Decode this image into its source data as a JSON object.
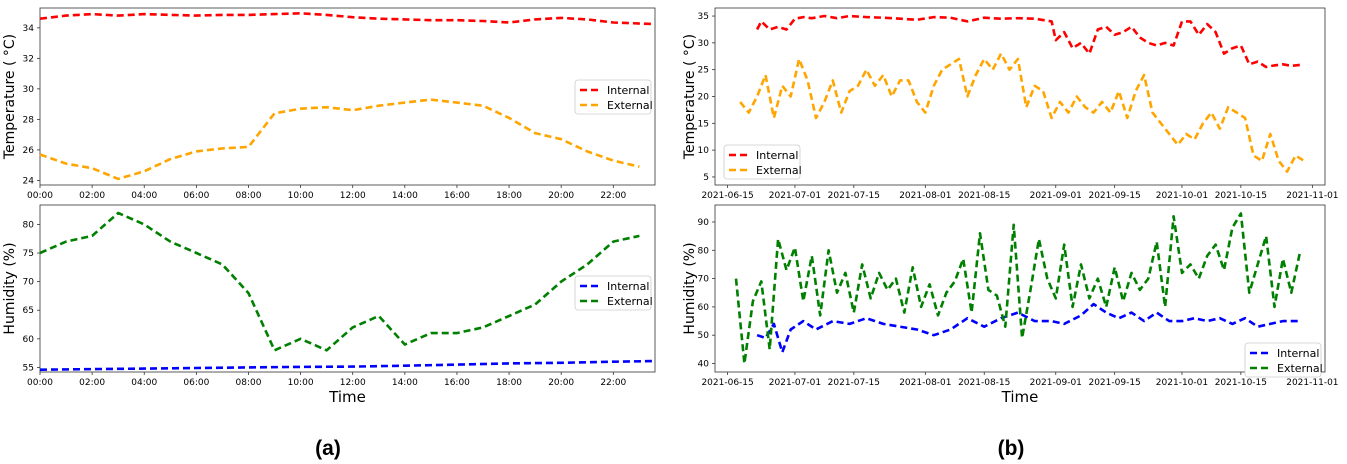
{
  "colors": {
    "internal_temp": "#ff0000",
    "external_temp": "#ffa500",
    "internal_hum": "#0000ff",
    "external_hum": "#008000"
  },
  "panel_labels": {
    "a": "(a)",
    "b": "(b)"
  },
  "chart_data": [
    {
      "id": "a-top",
      "type": "line",
      "panel": "(a)",
      "ylabel": "Temperature ( °C)",
      "xlabel": "",
      "xlim": [
        0,
        23.6
      ],
      "ylim": [
        23.7,
        35.3
      ],
      "xticks": [
        0,
        2,
        4,
        6,
        8,
        10,
        12,
        14,
        16,
        18,
        20,
        22
      ],
      "xtick_labels": [
        "00:00",
        "02:00",
        "04:00",
        "06:00",
        "08:00",
        "10:00",
        "12:00",
        "14:00",
        "16:00",
        "18:00",
        "20:00",
        "22:00"
      ],
      "yticks": [
        24,
        26,
        28,
        30,
        32,
        34
      ],
      "legend": {
        "loc": "center-right"
      },
      "series": [
        {
          "name": "Internal",
          "color": "#ff0000",
          "x": [
            0,
            1,
            2,
            3,
            4,
            5,
            6,
            7,
            8,
            9,
            10,
            11,
            12,
            13,
            14,
            15,
            16,
            17,
            18,
            19,
            20,
            21,
            22,
            23.5
          ],
          "y": [
            34.6,
            34.8,
            34.9,
            34.8,
            34.9,
            34.85,
            34.8,
            34.85,
            34.85,
            34.9,
            34.95,
            34.85,
            34.7,
            34.6,
            34.55,
            34.5,
            34.5,
            34.45,
            34.35,
            34.55,
            34.65,
            34.55,
            34.35,
            34.25
          ]
        },
        {
          "name": "External",
          "color": "#ffa500",
          "x": [
            0,
            1,
            2,
            3,
            4,
            5,
            6,
            7,
            8,
            9,
            10,
            11,
            12,
            13,
            14,
            15,
            16,
            17,
            18,
            19,
            20,
            21,
            22,
            23
          ],
          "y": [
            25.7,
            25.1,
            24.8,
            24.1,
            24.6,
            25.4,
            25.9,
            26.1,
            26.2,
            28.4,
            28.7,
            28.8,
            28.6,
            28.9,
            29.1,
            29.3,
            29.1,
            28.9,
            28.1,
            27.1,
            26.7,
            25.9,
            25.3,
            24.9
          ]
        }
      ]
    },
    {
      "id": "a-bottom",
      "type": "line",
      "panel": "(a)",
      "ylabel": "Humidity (%)",
      "xlabel": "Time",
      "xlim": [
        0,
        23.6
      ],
      "ylim": [
        54.2,
        83.4
      ],
      "xticks": [
        0,
        2,
        4,
        6,
        8,
        10,
        12,
        14,
        16,
        18,
        20,
        22
      ],
      "xtick_labels": [
        "00:00",
        "02:00",
        "04:00",
        "06:00",
        "08:00",
        "10:00",
        "12:00",
        "14:00",
        "16:00",
        "18:00",
        "20:00",
        "22:00"
      ],
      "yticks": [
        55,
        60,
        65,
        70,
        75,
        80
      ],
      "legend": {
        "loc": "center-right"
      },
      "series": [
        {
          "name": "Internal",
          "color": "#0000ff",
          "x": [
            0,
            2,
            4,
            6,
            8,
            10,
            12,
            14,
            16,
            18,
            20,
            22,
            23.5
          ],
          "y": [
            54.6,
            54.7,
            54.8,
            54.9,
            55.0,
            55.1,
            55.15,
            55.3,
            55.5,
            55.7,
            55.8,
            56.0,
            56.1
          ]
        },
        {
          "name": "External",
          "color": "#008000",
          "x": [
            0,
            1,
            2,
            3,
            4,
            5,
            6,
            7,
            8,
            9,
            10,
            11,
            12,
            13,
            14,
            15,
            16,
            17,
            18,
            19,
            20,
            21,
            22,
            23
          ],
          "y": [
            75,
            77,
            78,
            82,
            80,
            77,
            75,
            73,
            68,
            58,
            60,
            58,
            62,
            64,
            59,
            61,
            61,
            62,
            64,
            66,
            70,
            73,
            77,
            78
          ]
        }
      ]
    },
    {
      "id": "b-top",
      "type": "line",
      "panel": "(b)",
      "ylabel": "Temperature ( °C)",
      "xlabel": "",
      "xlim": [
        "2021-06-12",
        "2021-11-04"
      ],
      "ylim": [
        3.5,
        36.5
      ],
      "xticks": [
        "2021-06-15",
        "2021-07-01",
        "2021-07-15",
        "2021-08-01",
        "2021-08-15",
        "2021-09-01",
        "2021-09-15",
        "2021-10-01",
        "2021-10-15",
        "2021-11-01"
      ],
      "xtick_labels": [
        "2021-06-15",
        "2021-07-01",
        "2021-07-15",
        "2021-08-01",
        "2021-08-15",
        "2021-09-01",
        "2021-09-15",
        "2021-10-01",
        "2021-10-15",
        "2021-11-01"
      ],
      "yticks": [
        5,
        10,
        15,
        20,
        25,
        30,
        35
      ],
      "legend": {
        "loc": "lower-left"
      },
      "series": [
        {
          "name": "Internal",
          "color": "#ff0000",
          "x": [
            "2021-06-22",
            "2021-06-23",
            "2021-06-25",
            "2021-06-27",
            "2021-06-29",
            "2021-07-01",
            "2021-07-03",
            "2021-07-05",
            "2021-07-08",
            "2021-07-11",
            "2021-07-14",
            "2021-07-18",
            "2021-07-22",
            "2021-07-26",
            "2021-07-30",
            "2021-08-03",
            "2021-08-07",
            "2021-08-11",
            "2021-08-15",
            "2021-08-19",
            "2021-08-23",
            "2021-08-27",
            "2021-08-31",
            "2021-09-01",
            "2021-09-03",
            "2021-09-05",
            "2021-09-07",
            "2021-09-09",
            "2021-09-11",
            "2021-09-13",
            "2021-09-15",
            "2021-09-17",
            "2021-09-19",
            "2021-09-21",
            "2021-09-23",
            "2021-09-25",
            "2021-09-27",
            "2021-09-29",
            "2021-10-01",
            "2021-10-03",
            "2021-10-05",
            "2021-10-07",
            "2021-10-09",
            "2021-10-11",
            "2021-10-13",
            "2021-10-15",
            "2021-10-17",
            "2021-10-19",
            "2021-10-21",
            "2021-10-23",
            "2021-10-25",
            "2021-10-27",
            "2021-10-29"
          ],
          "y": [
            32.5,
            34.0,
            32.5,
            33.0,
            32.5,
            34.5,
            34.8,
            34.6,
            35.0,
            34.6,
            35.0,
            34.8,
            34.7,
            34.5,
            34.3,
            34.8,
            34.7,
            34.0,
            34.7,
            34.5,
            34.6,
            34.5,
            34.0,
            30.5,
            32.0,
            29.0,
            30.0,
            28.0,
            32.5,
            33.0,
            31.5,
            32.0,
            33.0,
            31.0,
            30.0,
            29.5,
            30.0,
            29.5,
            34.0,
            34.0,
            31.5,
            33.5,
            32.0,
            28.0,
            29.0,
            29.5,
            26.0,
            26.5,
            25.5,
            25.8,
            26.0,
            25.7,
            25.9
          ]
        },
        {
          "name": "External",
          "color": "#ffa500",
          "x": [
            "2021-06-18",
            "2021-06-20",
            "2021-06-22",
            "2021-06-24",
            "2021-06-26",
            "2021-06-28",
            "2021-06-30",
            "2021-07-02",
            "2021-07-04",
            "2021-07-06",
            "2021-07-08",
            "2021-07-10",
            "2021-07-12",
            "2021-07-14",
            "2021-07-16",
            "2021-07-18",
            "2021-07-20",
            "2021-07-22",
            "2021-07-24",
            "2021-07-26",
            "2021-07-28",
            "2021-07-30",
            "2021-08-01",
            "2021-08-03",
            "2021-08-05",
            "2021-08-07",
            "2021-08-09",
            "2021-08-11",
            "2021-08-13",
            "2021-08-15",
            "2021-08-17",
            "2021-08-19",
            "2021-08-21",
            "2021-08-23",
            "2021-08-25",
            "2021-08-27",
            "2021-08-29",
            "2021-08-31",
            "2021-09-02",
            "2021-09-04",
            "2021-09-06",
            "2021-09-08",
            "2021-09-10",
            "2021-09-12",
            "2021-09-14",
            "2021-09-16",
            "2021-09-18",
            "2021-09-20",
            "2021-09-22",
            "2021-09-24",
            "2021-09-26",
            "2021-09-28",
            "2021-09-30",
            "2021-10-02",
            "2021-10-04",
            "2021-10-06",
            "2021-10-08",
            "2021-10-10",
            "2021-10-12",
            "2021-10-14",
            "2021-10-16",
            "2021-10-18",
            "2021-10-20",
            "2021-10-22",
            "2021-10-24",
            "2021-10-26",
            "2021-10-28",
            "2021-10-30"
          ],
          "y": [
            19,
            17,
            20,
            24,
            16,
            22,
            20,
            27,
            23,
            16,
            19,
            23,
            17,
            21,
            22,
            25,
            22,
            24,
            20,
            23,
            23,
            19,
            17,
            22,
            25,
            26,
            27,
            20,
            24,
            27,
            25,
            28,
            25,
            27,
            18,
            22,
            21,
            16,
            19,
            17,
            20,
            18,
            17,
            19,
            17,
            21,
            16,
            21,
            24,
            17,
            15,
            13,
            11,
            13,
            12,
            15,
            17,
            14,
            18,
            17,
            16,
            9,
            8,
            13,
            8,
            6,
            9,
            8
          ]
        }
      ]
    },
    {
      "id": "b-bottom",
      "type": "line",
      "panel": "(b)",
      "ylabel": "Humidity (%)",
      "xlabel": "Time",
      "xlim": [
        "2021-06-12",
        "2021-11-04"
      ],
      "ylim": [
        37,
        96
      ],
      "xticks": [
        "2021-06-15",
        "2021-07-01",
        "2021-07-15",
        "2021-08-01",
        "2021-08-15",
        "2021-09-01",
        "2021-09-15",
        "2021-10-01",
        "2021-10-15",
        "2021-11-01"
      ],
      "xtick_labels": [
        "2021-06-15",
        "2021-07-01",
        "2021-07-15",
        "2021-08-01",
        "2021-08-15",
        "2021-09-01",
        "2021-09-15",
        "2021-10-01",
        "2021-10-15",
        "2021-11-01"
      ],
      "yticks": [
        40,
        50,
        60,
        70,
        80,
        90
      ],
      "legend": {
        "loc": "lower-right"
      },
      "series": [
        {
          "name": "Internal",
          "color": "#0000ff",
          "x": [
            "2021-06-22",
            "2021-06-24",
            "2021-06-26",
            "2021-06-28",
            "2021-06-30",
            "2021-07-03",
            "2021-07-06",
            "2021-07-10",
            "2021-07-14",
            "2021-07-18",
            "2021-07-22",
            "2021-07-26",
            "2021-07-30",
            "2021-08-03",
            "2021-08-07",
            "2021-08-11",
            "2021-08-15",
            "2021-08-19",
            "2021-08-23",
            "2021-08-27",
            "2021-08-31",
            "2021-09-03",
            "2021-09-07",
            "2021-09-10",
            "2021-09-13",
            "2021-09-16",
            "2021-09-19",
            "2021-09-22",
            "2021-09-25",
            "2021-09-28",
            "2021-10-01",
            "2021-10-04",
            "2021-10-07",
            "2021-10-10",
            "2021-10-13",
            "2021-10-16",
            "2021-10-19",
            "2021-10-22",
            "2021-10-25",
            "2021-10-29"
          ],
          "y": [
            50,
            49,
            54,
            44,
            52,
            55,
            52,
            55,
            54,
            56,
            54,
            53,
            52,
            50,
            52,
            56,
            53,
            56,
            58,
            55,
            55,
            54,
            57,
            61,
            58,
            56,
            58,
            55,
            58,
            55,
            55,
            56,
            55,
            56,
            54,
            56,
            53,
            54,
            55,
            55
          ]
        },
        {
          "name": "External",
          "color": "#008000",
          "x": [
            "2021-06-17",
            "2021-06-19",
            "2021-06-21",
            "2021-06-23",
            "2021-06-25",
            "2021-06-27",
            "2021-06-29",
            "2021-07-01",
            "2021-07-03",
            "2021-07-05",
            "2021-07-07",
            "2021-07-09",
            "2021-07-11",
            "2021-07-13",
            "2021-07-15",
            "2021-07-17",
            "2021-07-19",
            "2021-07-21",
            "2021-07-23",
            "2021-07-25",
            "2021-07-27",
            "2021-07-29",
            "2021-07-31",
            "2021-08-02",
            "2021-08-04",
            "2021-08-06",
            "2021-08-08",
            "2021-08-10",
            "2021-08-12",
            "2021-08-14",
            "2021-08-16",
            "2021-08-18",
            "2021-08-20",
            "2021-08-22",
            "2021-08-24",
            "2021-08-26",
            "2021-08-28",
            "2021-08-30",
            "2021-09-01",
            "2021-09-03",
            "2021-09-05",
            "2021-09-07",
            "2021-09-09",
            "2021-09-11",
            "2021-09-13",
            "2021-09-15",
            "2021-09-17",
            "2021-09-19",
            "2021-09-21",
            "2021-09-23",
            "2021-09-25",
            "2021-09-27",
            "2021-09-29",
            "2021-10-01",
            "2021-10-03",
            "2021-10-05",
            "2021-10-07",
            "2021-10-09",
            "2021-10-11",
            "2021-10-13",
            "2021-10-15",
            "2021-10-17",
            "2021-10-19",
            "2021-10-21",
            "2021-10-23",
            "2021-10-25",
            "2021-10-27",
            "2021-10-29"
          ],
          "y": [
            70,
            40,
            62,
            69,
            45,
            84,
            73,
            81,
            62,
            78,
            57,
            80,
            65,
            72,
            58,
            75,
            63,
            72,
            66,
            70,
            58,
            74,
            60,
            68,
            57,
            65,
            69,
            77,
            58,
            86,
            66,
            64,
            53,
            89,
            49,
            66,
            84,
            70,
            63,
            82,
            60,
            75,
            63,
            70,
            60,
            74,
            62,
            72,
            66,
            70,
            83,
            60,
            92,
            72,
            75,
            70,
            78,
            82,
            73,
            88,
            93,
            65,
            75,
            85,
            60,
            77,
            65,
            79
          ]
        }
      ]
    }
  ]
}
